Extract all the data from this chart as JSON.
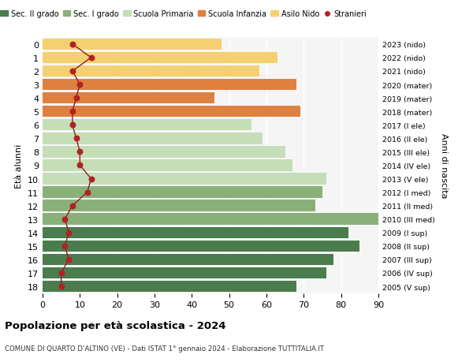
{
  "ages": [
    0,
    1,
    2,
    3,
    4,
    5,
    6,
    7,
    8,
    9,
    10,
    11,
    12,
    13,
    14,
    15,
    16,
    17,
    18
  ],
  "bar_values": [
    48,
    63,
    58,
    68,
    46,
    69,
    56,
    59,
    65,
    67,
    76,
    75,
    73,
    90,
    82,
    85,
    78,
    76,
    68
  ],
  "bar_colors": [
    "#f5d070",
    "#f5d070",
    "#f5d070",
    "#e08040",
    "#e08040",
    "#e08040",
    "#c5deb8",
    "#c5deb8",
    "#c5deb8",
    "#c5deb8",
    "#c5deb8",
    "#8ab07a",
    "#8ab07a",
    "#8ab07a",
    "#4a7c4e",
    "#4a7c4e",
    "#4a7c4e",
    "#4a7c4e",
    "#4a7c4e"
  ],
  "stranieri_values": [
    8,
    13,
    8,
    10,
    9,
    8,
    8,
    9,
    10,
    10,
    13,
    12,
    8,
    6,
    7,
    6,
    7,
    5,
    5
  ],
  "right_labels": [
    "2023 (nido)",
    "2022 (nido)",
    "2021 (nido)",
    "2020 (mater)",
    "2019 (mater)",
    "2018 (mater)",
    "2017 (I ele)",
    "2016 (II ele)",
    "2015 (III ele)",
    "2014 (IV ele)",
    "2013 (V ele)",
    "2012 (I med)",
    "2011 (II med)",
    "2010 (III med)",
    "2009 (I sup)",
    "2008 (II sup)",
    "2007 (III sup)",
    "2006 (IV sup)",
    "2005 (V sup)"
  ],
  "legend_labels": [
    "Sec. II grado",
    "Sec. I grado",
    "Scuola Primaria",
    "Scuola Infanzia",
    "Asilo Nido",
    "Stranieri"
  ],
  "legend_colors": [
    "#4a7c4e",
    "#8ab07a",
    "#c5deb8",
    "#e08040",
    "#f5d070",
    "#b22222"
  ],
  "ylabel_left": "Età alunni",
  "ylabel_right": "Anni di nascita",
  "title": "Popolazione per età scolastica - 2024",
  "subtitle": "COMUNE DI QUARTO D'ALTINO (VE) - Dati ISTAT 1° gennaio 2024 - Elaborazione TUTTITALIA.IT",
  "xlim": [
    0,
    90
  ],
  "xticks": [
    0,
    10,
    20,
    30,
    40,
    50,
    60,
    70,
    80,
    90
  ],
  "stranieri_color": "#b22222",
  "line_color": "#8b2020",
  "background_color": "#ffffff"
}
